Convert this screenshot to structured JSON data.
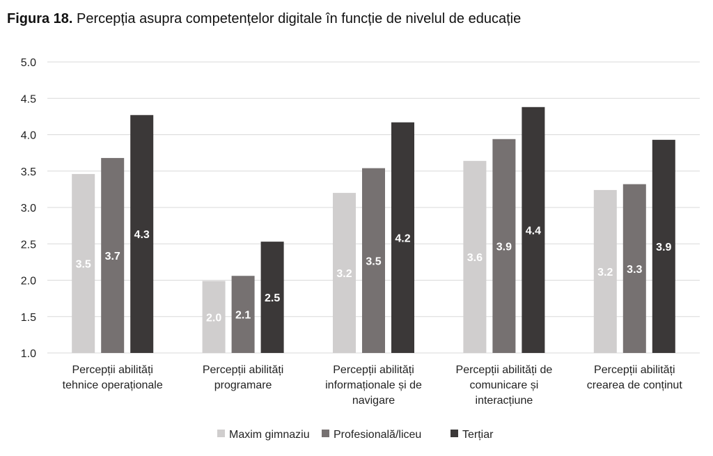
{
  "title_bold": "Figura 18.",
  "title_rest": " Percepția asupra competențelor digitale în funcție de nivelul de educație",
  "chart_data": {
    "type": "bar",
    "title": "Figura 18. Percepția asupra competențelor digitale în funcție de nivelul de educație",
    "xlabel": "",
    "ylabel": "",
    "ylim": [
      1.0,
      5.0
    ],
    "yticks": [
      "1.0",
      "1.5",
      "2.0",
      "2.5",
      "3.0",
      "3.5",
      "4.0",
      "4.5",
      "5.0"
    ],
    "grid": true,
    "legend_position": "bottom",
    "categories": [
      [
        "Percepții abilități",
        "tehnice operaționale"
      ],
      [
        "Percepții abilități",
        "programare"
      ],
      [
        "Percepții abilități",
        "informaționale și de",
        "navigare"
      ],
      [
        "Percepții abilități de",
        "comunicare și",
        "interacțiune"
      ],
      [
        "Percepții abilități",
        "crearea de conținut"
      ]
    ],
    "series": [
      {
        "name": "Maxim gimnaziu",
        "color": "#d0cece",
        "label_color": "#ffffff",
        "values": [
          3.46,
          1.99,
          3.2,
          3.64,
          3.24
        ],
        "labels": [
          "3.5",
          "2.0",
          "3.2",
          "3.6",
          "3.2"
        ]
      },
      {
        "name": "Profesională/liceu",
        "color": "#767171",
        "label_color": "#ffffff",
        "values": [
          3.68,
          2.06,
          3.54,
          3.94,
          3.32
        ],
        "labels": [
          "3.7",
          "2.1",
          "3.5",
          "3.9",
          "3.3"
        ]
      },
      {
        "name": "Terțiar",
        "color": "#3b3838",
        "label_color": "#ffffff",
        "values": [
          4.27,
          2.53,
          4.17,
          4.38,
          3.93
        ],
        "labels": [
          "4.3",
          "2.5",
          "4.2",
          "4.4",
          "3.9"
        ]
      }
    ]
  }
}
